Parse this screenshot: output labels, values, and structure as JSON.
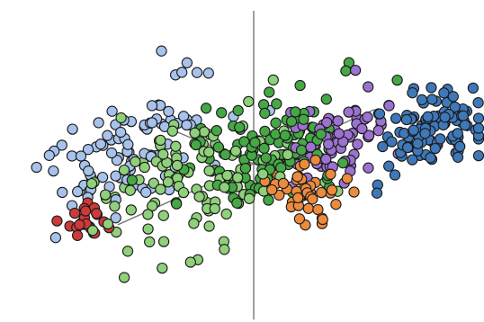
{
  "chart_data": {
    "type": "scatter",
    "projection": "3d",
    "title": "",
    "xlabel": "",
    "ylabel": "",
    "zlabel": "",
    "legend": "none",
    "grid": false,
    "axis_range_all_dims": [
      -5,
      5
    ],
    "series": [
      {
        "color": "#a7c2eb",
        "n": 95,
        "center": [
          -1.8,
          3.6,
          0.4
        ],
        "spread": [
          1.3,
          0.9,
          0.8
        ]
      },
      {
        "color": "#cc3a3a",
        "n": 22,
        "center": [
          -4.7,
          1.4,
          0.0
        ],
        "spread": [
          0.35,
          0.3,
          0.3
        ]
      },
      {
        "color": "#8fd07a",
        "n": 120,
        "center": [
          -1.2,
          0.9,
          0.0
        ],
        "spread": [
          1.5,
          1.3,
          1.0
        ]
      },
      {
        "color": "#45a845",
        "n": 120,
        "center": [
          0.9,
          0.3,
          0.0
        ],
        "spread": [
          1.2,
          0.9,
          0.8
        ]
      },
      {
        "color": "#9b72cf",
        "n": 70,
        "center": [
          2.4,
          -0.9,
          0.0
        ],
        "spread": [
          0.9,
          0.7,
          0.6
        ]
      },
      {
        "color": "#3e78b8",
        "n": 110,
        "center": [
          4.3,
          -2.8,
          0.0
        ],
        "spread": [
          0.8,
          0.6,
          0.6
        ]
      },
      {
        "color": "#ec8b3c",
        "n": 45,
        "center": [
          -0.3,
          -3.4,
          0.0
        ],
        "spread": [
          0.3,
          0.8,
          0.4
        ]
      }
    ]
  }
}
